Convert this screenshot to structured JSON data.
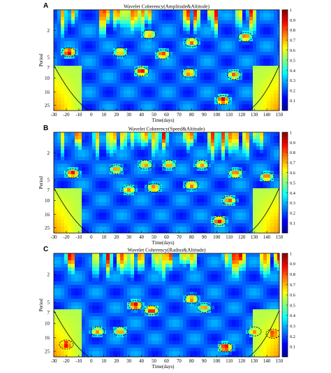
{
  "colors": {
    "colormap": [
      "#00008f",
      "#0000ff",
      "#0080ff",
      "#00ffff",
      "#80ff80",
      "#ffff00",
      "#ff8000",
      "#ff0000",
      "#800000"
    ],
    "contour": "#000000",
    "coi": "#000000"
  },
  "chart_data": [
    {
      "type": "heatmap",
      "panel_label": "A",
      "title": "Wavelet Coherency(Amplitude&Altitude)",
      "xlabel": "Time(days)",
      "ylabel": "Period",
      "x_ticks": [
        -30,
        -20,
        -10,
        0,
        10,
        20,
        30,
        40,
        50,
        60,
        70,
        80,
        90,
        100,
        110,
        120,
        130,
        140,
        150
      ],
      "xlim": [
        -30,
        150
      ],
      "y_ticks": [
        2,
        5,
        7,
        10,
        16,
        25
      ],
      "ylim": [
        1,
        30
      ],
      "y_scale": "log",
      "colorbar": {
        "ticks": [
          0.1,
          0.2,
          0.3,
          0.4,
          0.5,
          0.6,
          0.7,
          0.8,
          0.9,
          1
        ],
        "range": [
          0,
          1
        ]
      },
      "high_coherence_regions": [
        {
          "time": -18,
          "period": 4.2,
          "coherency": 0.95
        },
        {
          "time": 23,
          "period": 4.2,
          "coherency": 0.75
        },
        {
          "time": 40,
          "period": 8.0,
          "coherency": 0.9
        },
        {
          "time": 46,
          "period": 2.3,
          "coherency": 0.75
        },
        {
          "time": 57,
          "period": 4.5,
          "coherency": 0.85
        },
        {
          "time": 80,
          "period": 3.0,
          "coherency": 0.8
        },
        {
          "time": 78,
          "period": 8.5,
          "coherency": 0.8
        },
        {
          "time": 105,
          "period": 21,
          "coherency": 0.95
        },
        {
          "time": 114,
          "period": 9.0,
          "coherency": 0.8
        },
        {
          "time": 123,
          "period": 2.5,
          "coherency": 0.8
        }
      ]
    },
    {
      "type": "heatmap",
      "panel_label": "B",
      "title": "Wavelet Coherency(Speed&Altitude)",
      "xlabel": "Time(days)",
      "ylabel": "Period",
      "x_ticks": [
        -30,
        -20,
        -10,
        0,
        10,
        20,
        30,
        40,
        50,
        60,
        70,
        80,
        90,
        100,
        110,
        120,
        130,
        140,
        150
      ],
      "xlim": [
        -30,
        150
      ],
      "y_ticks": [
        2,
        5,
        7,
        10,
        16,
        25
      ],
      "ylim": [
        1,
        30
      ],
      "y_scale": "log",
      "colorbar": {
        "ticks": [
          0.1,
          0.2,
          0.3,
          0.4,
          0.5,
          0.6,
          0.7,
          0.8,
          0.9,
          1
        ],
        "range": [
          0,
          1
        ]
      },
      "high_coherence_regions": [
        {
          "time": -15,
          "period": 4.0,
          "coherency": 0.9
        },
        {
          "time": 20,
          "period": 3.5,
          "coherency": 0.75
        },
        {
          "time": 30,
          "period": 7.0,
          "coherency": 0.75
        },
        {
          "time": 43,
          "period": 3.0,
          "coherency": 0.75
        },
        {
          "time": 50,
          "period": 6.5,
          "coherency": 0.8
        },
        {
          "time": 62,
          "period": 3.0,
          "coherency": 0.75
        },
        {
          "time": 80,
          "period": 6.0,
          "coherency": 0.8
        },
        {
          "time": 88,
          "period": 3.0,
          "coherency": 0.75
        },
        {
          "time": 102,
          "period": 20,
          "coherency": 0.9
        },
        {
          "time": 110,
          "period": 10,
          "coherency": 0.8
        },
        {
          "time": 115,
          "period": 4.0,
          "coherency": 0.8
        },
        {
          "time": 140,
          "period": 4.5,
          "coherency": 0.8
        }
      ]
    },
    {
      "type": "heatmap",
      "panel_label": "C",
      "title": "Wavelet Coherency(Radius&Altitude)",
      "xlabel": "Time(days)",
      "ylabel": "Period",
      "x_ticks": [
        -30,
        -20,
        -10,
        0,
        10,
        20,
        30,
        40,
        50,
        60,
        70,
        80,
        90,
        100,
        110,
        120,
        130,
        140,
        150
      ],
      "xlim": [
        -30,
        150
      ],
      "y_ticks": [
        2,
        5,
        7,
        10,
        16,
        25
      ],
      "ylim": [
        1,
        30
      ],
      "y_scale": "log",
      "colorbar": {
        "ticks": [
          0.1,
          0.2,
          0.3,
          0.4,
          0.5,
          0.6,
          0.7,
          0.8,
          0.9,
          1
        ],
        "range": [
          0,
          1
        ]
      },
      "high_coherence_regions": [
        {
          "time": -20,
          "period": 20,
          "coherency": 0.95
        },
        {
          "time": 5,
          "period": 13,
          "coherency": 0.75
        },
        {
          "time": 23,
          "period": 13,
          "coherency": 0.75
        },
        {
          "time": 35,
          "period": 5.5,
          "coherency": 0.95
        },
        {
          "time": 48,
          "period": 6.5,
          "coherency": 0.9
        },
        {
          "time": 80,
          "period": 4.5,
          "coherency": 0.8
        },
        {
          "time": 90,
          "period": 6.0,
          "coherency": 0.75
        },
        {
          "time": 107,
          "period": 22,
          "coherency": 0.95
        },
        {
          "time": 130,
          "period": 13,
          "coherency": 0.75
        },
        {
          "time": 145,
          "period": 14,
          "coherency": 0.9
        }
      ]
    }
  ]
}
